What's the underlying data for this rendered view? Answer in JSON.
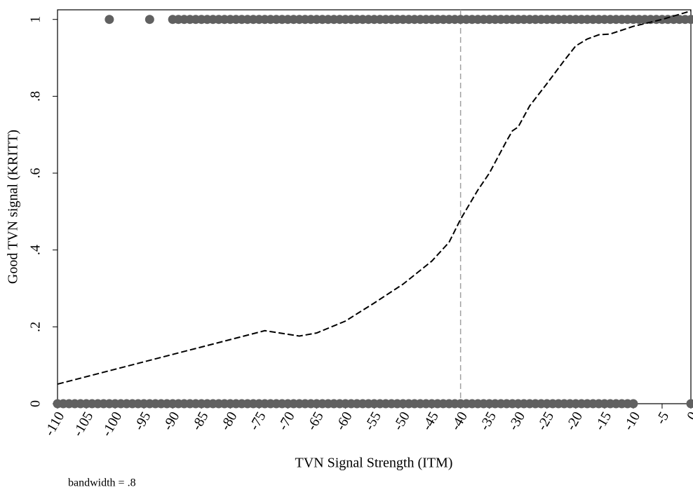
{
  "chart_data": {
    "type": "scatter",
    "xlabel": "TVN Signal Strength (ITM)",
    "ylabel": "Good TVN signal (KRITT)",
    "note": "bandwidth = .8",
    "xlim": [
      -110,
      0
    ],
    "ylim": [
      0,
      1.025
    ],
    "xticks": [
      -110,
      -105,
      -100,
      -95,
      -90,
      -85,
      -80,
      -75,
      -70,
      -65,
      -60,
      -55,
      -50,
      -45,
      -40,
      -35,
      -30,
      -25,
      -20,
      -15,
      -10,
      -5,
      0
    ],
    "yticks": [
      0,
      {
        "value": 0.2,
        "label": ".2"
      },
      {
        "value": 0.4,
        "label": ".4"
      },
      {
        "value": 0.6,
        "label": ".6"
      },
      {
        "value": 0.8,
        "label": ".8"
      },
      1
    ],
    "vline": -40,
    "vline_color": "#a0a0a0",
    "series": [
      {
        "type": "scatter",
        "color": "#606060",
        "x": [
          -101,
          -94,
          -90,
          -89,
          -88,
          -87,
          -86,
          -85,
          -84,
          -83,
          -82,
          -81,
          -80,
          -79,
          -78,
          -77,
          -76,
          -75,
          -74,
          -73,
          -72,
          -71,
          -70,
          -69,
          -68,
          -67,
          -66,
          -65,
          -64,
          -63,
          -62,
          -61,
          -60,
          -59,
          -58,
          -57,
          -56,
          -55,
          -54,
          -53,
          -52,
          -51,
          -50,
          -49,
          -48,
          -47,
          -46,
          -45,
          -44,
          -43,
          -42,
          -41,
          -40,
          -39,
          -38,
          -37,
          -36,
          -35,
          -34,
          -33,
          -32,
          -31,
          -30,
          -29,
          -28,
          -27,
          -26,
          -25,
          -24,
          -23,
          -22,
          -21,
          -20,
          -19,
          -18,
          -17,
          -16,
          -15,
          -14,
          -13,
          -12,
          -11,
          -10,
          -9,
          -8,
          -7,
          -6,
          -5,
          -4,
          -3,
          -2,
          -1,
          0
        ],
        "values": [
          1,
          1,
          1,
          1,
          1,
          1,
          1,
          1,
          1,
          1,
          1,
          1,
          1,
          1,
          1,
          1,
          1,
          1,
          1,
          1,
          1,
          1,
          1,
          1,
          1,
          1,
          1,
          1,
          1,
          1,
          1,
          1,
          1,
          1,
          1,
          1,
          1,
          1,
          1,
          1,
          1,
          1,
          1,
          1,
          1,
          1,
          1,
          1,
          1,
          1,
          1,
          1,
          1,
          1,
          1,
          1,
          1,
          1,
          1,
          1,
          1,
          1,
          1,
          1,
          1,
          1,
          1,
          1,
          1,
          1,
          1,
          1,
          1,
          1,
          1,
          1,
          1,
          1,
          1,
          1,
          1,
          1,
          1,
          1,
          1,
          1,
          1,
          1,
          1,
          1,
          1,
          1,
          1
        ]
      },
      {
        "type": "scatter",
        "color": "#606060",
        "x": [
          -110,
          -109,
          -108,
          -107,
          -106,
          -105,
          -104,
          -103,
          -102,
          -101,
          -100,
          -99,
          -98,
          -97,
          -96,
          -95,
          -94,
          -93,
          -92,
          -91,
          -90,
          -89,
          -88,
          -87,
          -86,
          -85,
          -84,
          -83,
          -82,
          -81,
          -80,
          -79,
          -78,
          -77,
          -76,
          -75,
          -74,
          -73,
          -72,
          -71,
          -70,
          -69,
          -68,
          -67,
          -66,
          -65,
          -64,
          -63,
          -62,
          -61,
          -60,
          -59,
          -58,
          -57,
          -56,
          -55,
          -54,
          -53,
          -52,
          -51,
          -50,
          -49,
          -48,
          -47,
          -46,
          -45,
          -44,
          -43,
          -42,
          -41,
          -40,
          -39,
          -38,
          -37,
          -36,
          -35,
          -34,
          -33,
          -32,
          -31,
          -30,
          -29,
          -28,
          -27,
          -26,
          -25,
          -24,
          -23,
          -22,
          -21,
          -20,
          -19,
          -18,
          -17,
          -16,
          -15,
          -14,
          -13,
          -12,
          -11,
          -10,
          0
        ],
        "values": [
          0,
          0,
          0,
          0,
          0,
          0,
          0,
          0,
          0,
          0,
          0,
          0,
          0,
          0,
          0,
          0,
          0,
          0,
          0,
          0,
          0,
          0,
          0,
          0,
          0,
          0,
          0,
          0,
          0,
          0,
          0,
          0,
          0,
          0,
          0,
          0,
          0,
          0,
          0,
          0,
          0,
          0,
          0,
          0,
          0,
          0,
          0,
          0,
          0,
          0,
          0,
          0,
          0,
          0,
          0,
          0,
          0,
          0,
          0,
          0,
          0,
          0,
          0,
          0,
          0,
          0,
          0,
          0,
          0,
          0,
          0,
          0,
          0,
          0,
          0,
          0,
          0,
          0,
          0,
          0,
          0,
          0,
          0,
          0,
          0,
          0,
          0,
          0,
          0,
          0,
          0,
          0,
          0,
          0,
          0,
          0,
          0,
          0,
          0,
          0,
          0,
          0
        ]
      },
      {
        "type": "line",
        "color": "#000000",
        "dashed": true,
        "x": [
          -110,
          -74,
          -68,
          -65,
          -60,
          -55,
          -50,
          -45,
          -42,
          -40,
          -37,
          -35,
          -32,
          -31,
          -30,
          -28,
          -25,
          -22,
          -20,
          -18,
          -16,
          -14,
          -10,
          -5,
          0
        ],
        "values": [
          0.051,
          0.19,
          0.176,
          0.184,
          0.215,
          0.262,
          0.311,
          0.371,
          0.42,
          0.48,
          0.556,
          0.6,
          0.684,
          0.71,
          0.72,
          0.775,
          0.833,
          0.893,
          0.931,
          0.949,
          0.96,
          0.962,
          0.982,
          1.0,
          1.022
        ]
      }
    ]
  }
}
